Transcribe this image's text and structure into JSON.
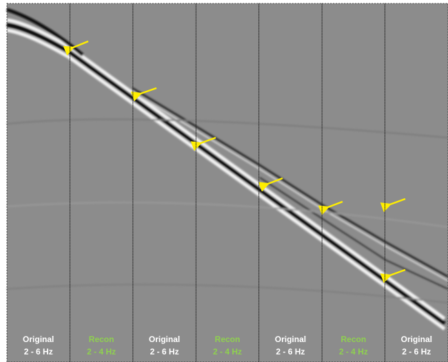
{
  "panels": [
    {
      "title": "Original",
      "band": "2 - 6 Hz",
      "color": "#ffffff"
    },
    {
      "title": "Recon",
      "band": "2 - 4 Hz",
      "color": "#8fd14f"
    },
    {
      "title": "Original",
      "band": "2 - 6 Hz",
      "color": "#ffffff"
    },
    {
      "title": "Recon",
      "band": "2 - 4 Hz",
      "color": "#8fd14f"
    },
    {
      "title": "Original",
      "band": "2 - 6 Hz",
      "color": "#ffffff"
    },
    {
      "title": "Recon",
      "band": "2 - 4 Hz",
      "color": "#8fd14f"
    },
    {
      "title": "Original",
      "band": "2 - 6 Hz",
      "color": "#ffffff"
    }
  ]
}
